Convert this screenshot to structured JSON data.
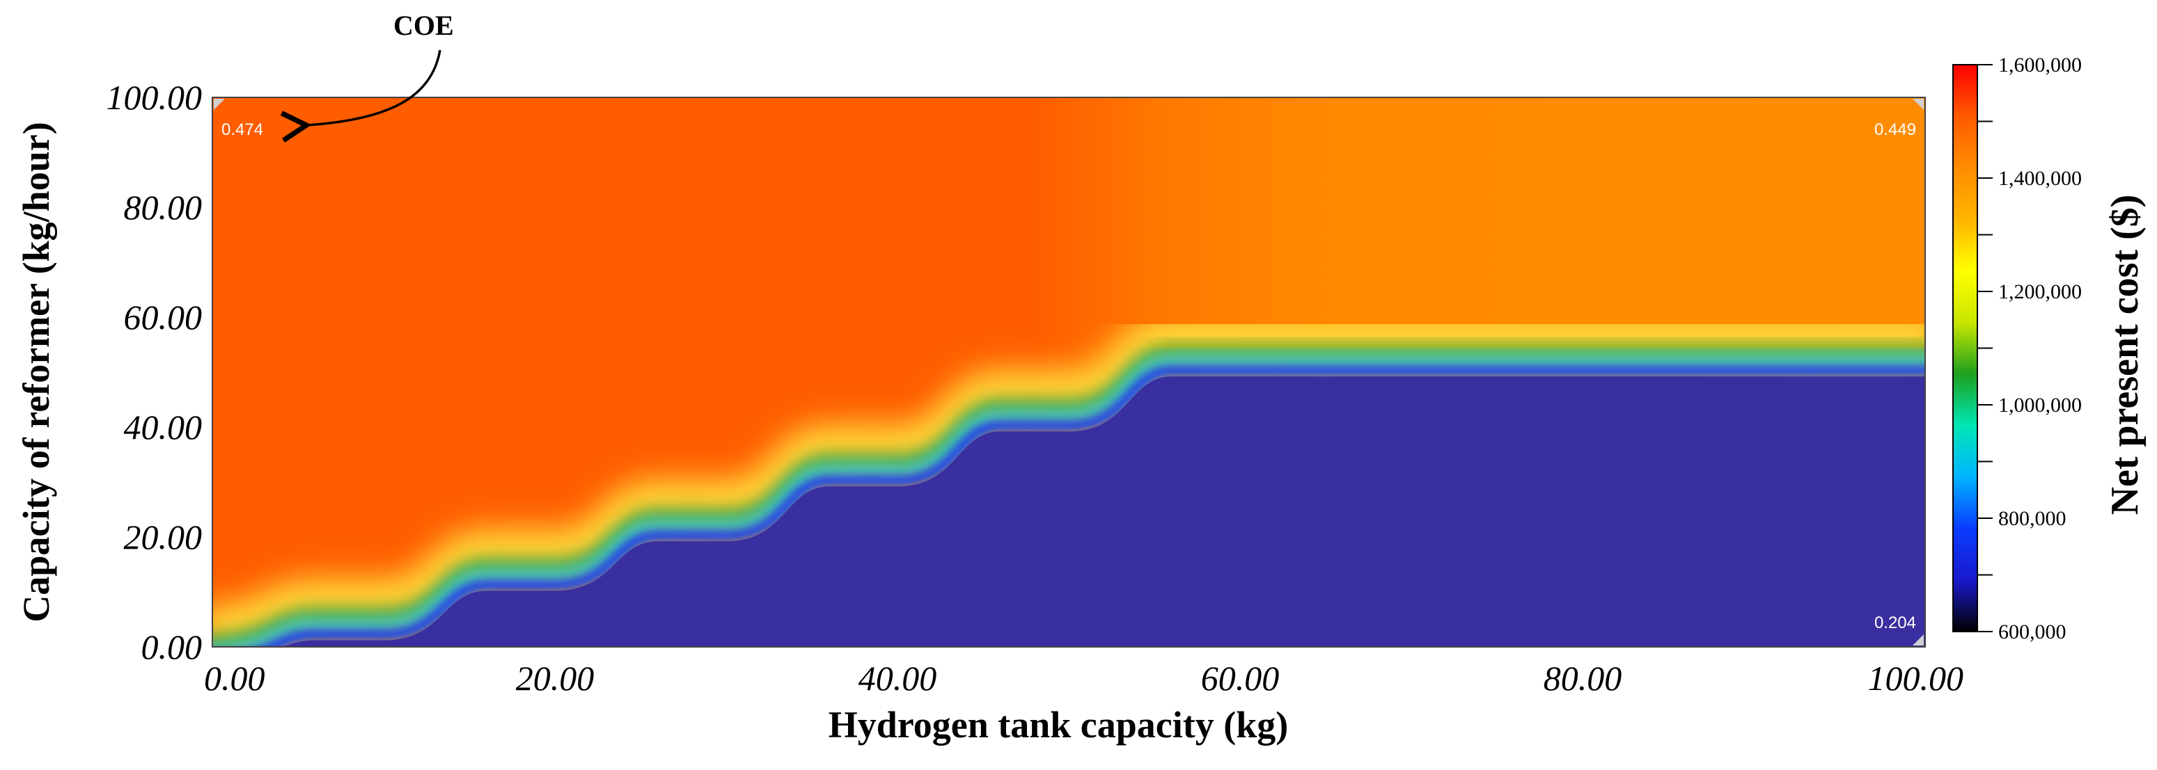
{
  "chart_data": {
    "type": "heatmap",
    "title": "",
    "xlabel": "Hydrogen tank capacity (kg)",
    "ylabel": "Capacity of reformer (kg/hour)",
    "xlim": [
      0,
      100
    ],
    "ylim": [
      0,
      100
    ],
    "x_ticks": [
      "0.00",
      "20.00",
      "40.00",
      "60.00",
      "80.00",
      "100.00"
    ],
    "y_ticks": [
      "0.00",
      "20.00",
      "40.00",
      "60.00",
      "80.00",
      "100.00"
    ],
    "colorbar": {
      "label": "Net present cost ($)",
      "range": [
        600000,
        1600000
      ],
      "ticks": [
        "600,000",
        "800,000",
        "1,000,000",
        "1,200,000",
        "1,400,000",
        "1,600,000"
      ],
      "tick_values": [
        600000,
        800000,
        1000000,
        1200000,
        1400000,
        1600000
      ],
      "colors": [
        "#000000",
        "#1a1acc",
        "#0a3cff",
        "#00b4ff",
        "#00e6b4",
        "#1ea01e",
        "#c8e600",
        "#ffff00",
        "#ffb400",
        "#ff8c00",
        "#ff5a00",
        "#ff0000"
      ]
    },
    "regions": [
      {
        "description": "low-cost region below staircase boundary",
        "npc": 650000,
        "color": "#3a2fa0"
      },
      {
        "description": "high-cost region, tank capacity 0-50 kg",
        "npc": 1500000,
        "color": "#ff5d00"
      },
      {
        "description": "high-cost region, tank capacity 55-100 kg, reformer above 55",
        "npc": 1420000,
        "color": "#ff8c00"
      }
    ],
    "boundary": [
      {
        "tank_kg": 0,
        "reformer_kg_per_hour": 0
      },
      {
        "tank_kg": 10,
        "reformer_kg_per_hour": 5
      },
      {
        "tank_kg": 20,
        "reformer_kg_per_hour": 14
      },
      {
        "tank_kg": 30,
        "reformer_kg_per_hour": 23
      },
      {
        "tank_kg": 40,
        "reformer_kg_per_hour": 33
      },
      {
        "tank_kg": 50,
        "reformer_kg_per_hour": 43
      },
      {
        "tank_kg": 60,
        "reformer_kg_per_hour": 53
      },
      {
        "tank_kg": 100,
        "reformer_kg_per_hour": 53
      }
    ],
    "corner_labels": [
      {
        "position": "top-left",
        "value": "0.474"
      },
      {
        "position": "top-right",
        "value": "0.449"
      },
      {
        "position": "bottom-right",
        "value": "0.204"
      }
    ],
    "annotation": {
      "text": "COE",
      "points_to": "top-left corner label"
    },
    "grid": false,
    "legend": "colorbar-right"
  }
}
